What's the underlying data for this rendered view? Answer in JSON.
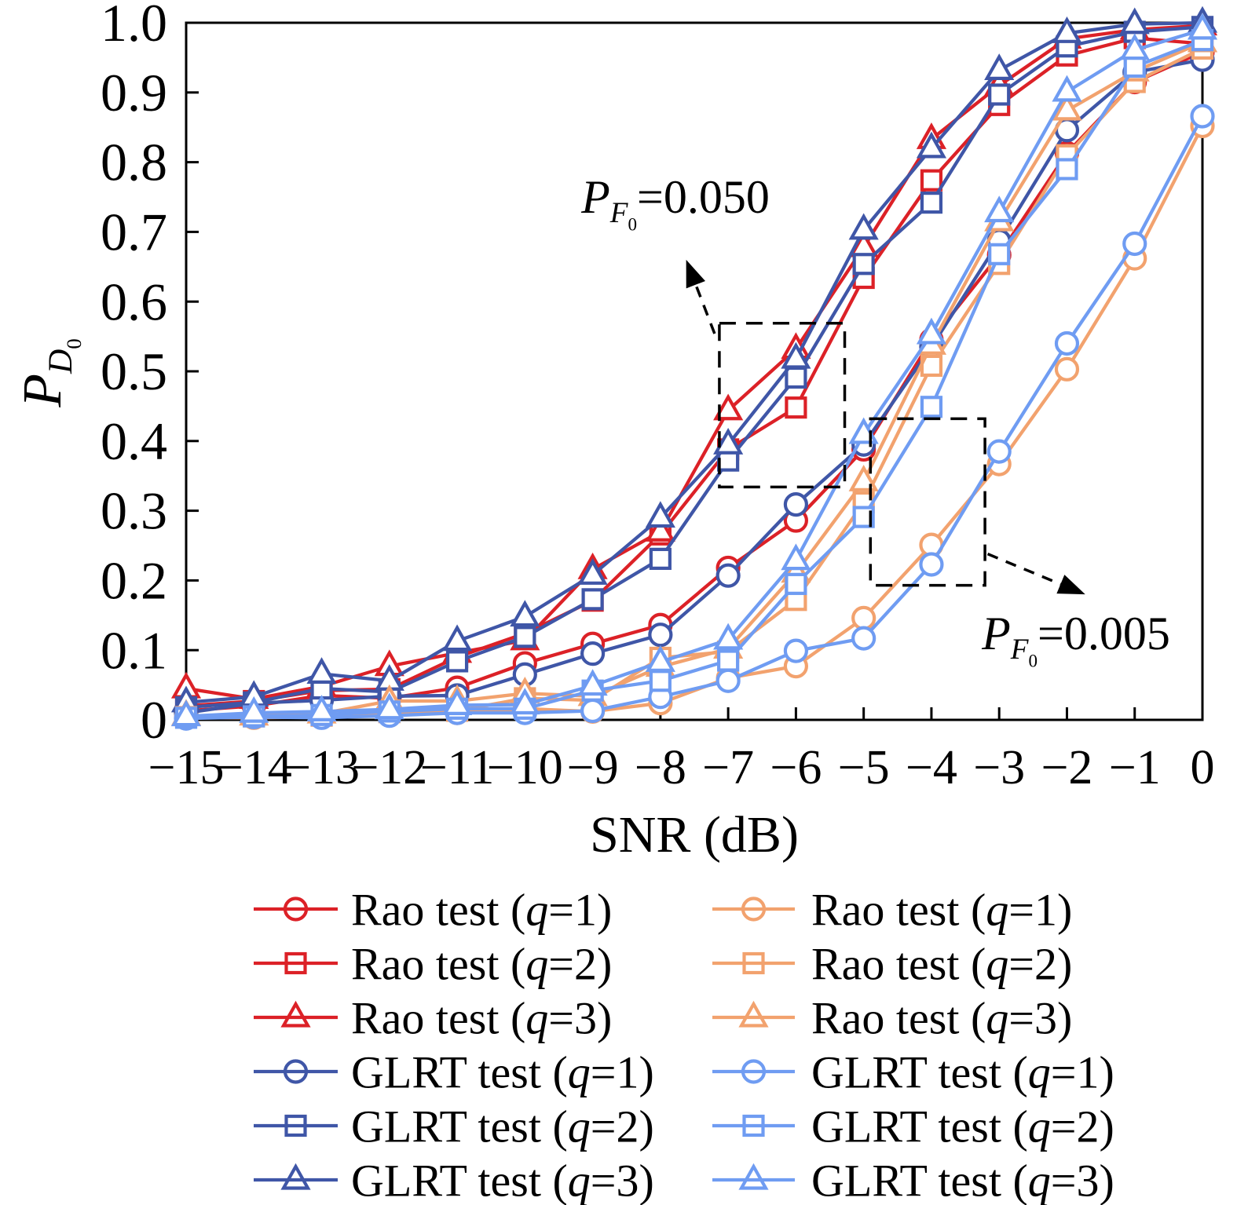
{
  "axes": {
    "x": {
      "label": "SNR (dB)",
      "range": [
        -15,
        0
      ],
      "tick_labels": [
        "−15",
        "−14",
        "−13",
        "−12",
        "−11",
        "−10",
        "−9",
        "−8",
        "−7",
        "−6",
        "−5",
        "−4",
        "−3",
        "−2",
        "−1",
        "0"
      ]
    },
    "y": {
      "label_parts": {
        "base": "P",
        "sub": "D",
        "subsub": "0"
      },
      "range": [
        0,
        1
      ],
      "tick_labels": [
        "0",
        "0.1",
        "0.2",
        "0.3",
        "0.4",
        "0.5",
        "0.6",
        "0.7",
        "0.8",
        "0.9",
        "1.0"
      ]
    }
  },
  "colors": {
    "rao_pfa050": "#dc2127",
    "glrt_pfa050": "#3f56a7",
    "rao_pfa005": "#f2a26e",
    "glrt_pfa005": "#6f9cf2",
    "axis": "#000000"
  },
  "chart_data": {
    "type": "line",
    "grid": false,
    "legend_position": "below axis, two columns",
    "x": [
      -15,
      -14,
      -13,
      -12,
      -11,
      -10,
      -9,
      -8,
      -7,
      -6,
      -5,
      -4,
      -3,
      -2,
      -1,
      0
    ],
    "series": [
      {
        "name": "rao-q1-pfa050",
        "legend_label": "Rao test (q=1)",
        "color": "rao_pfa050",
        "marker": "circle",
        "pfa": "0.050",
        "values": [
          0.013,
          0.02,
          0.035,
          0.031,
          0.046,
          0.081,
          0.109,
          0.136,
          0.218,
          0.286,
          0.388,
          0.545,
          0.667,
          0.813,
          0.915,
          0.958
        ]
      },
      {
        "name": "rao-q2-pfa050",
        "legend_label": "Rao test (q=2)",
        "color": "rao_pfa050",
        "marker": "square",
        "pfa": "0.050",
        "values": [
          0.02,
          0.027,
          0.042,
          0.044,
          0.09,
          0.124,
          0.171,
          0.266,
          0.388,
          0.448,
          0.634,
          0.774,
          0.882,
          0.953,
          0.978,
          0.97
        ]
      },
      {
        "name": "rao-q3-pfa050",
        "legend_label": "Rao test (q=3)",
        "color": "rao_pfa050",
        "marker": "triangle",
        "pfa": "0.050",
        "values": [
          0.045,
          0.03,
          0.048,
          0.077,
          0.096,
          0.114,
          0.216,
          0.27,
          0.444,
          0.532,
          0.678,
          0.833,
          0.91,
          0.977,
          0.99,
          0.996
        ]
      },
      {
        "name": "glrt-q1-pfa050",
        "legend_label": "GLRT test (q=1)",
        "color": "glrt_pfa050",
        "marker": "circle",
        "pfa": "0.050",
        "values": [
          0.01,
          0.024,
          0.028,
          0.034,
          0.035,
          0.065,
          0.095,
          0.122,
          0.207,
          0.309,
          0.395,
          0.535,
          0.687,
          0.846,
          0.929,
          0.947
        ]
      },
      {
        "name": "glrt-q2-pfa050",
        "legend_label": "GLRT test (q=2)",
        "color": "glrt_pfa050",
        "marker": "square",
        "pfa": "0.050",
        "values": [
          0.018,
          0.025,
          0.045,
          0.04,
          0.084,
          0.119,
          0.173,
          0.231,
          0.372,
          0.491,
          0.654,
          0.742,
          0.897,
          0.966,
          0.987,
          0.994
        ]
      },
      {
        "name": "glrt-q3-pfa050",
        "legend_label": "GLRT test (q=3)",
        "color": "glrt_pfa050",
        "marker": "triangle",
        "pfa": "0.050",
        "values": [
          0.025,
          0.033,
          0.066,
          0.056,
          0.113,
          0.148,
          0.208,
          0.29,
          0.395,
          0.518,
          0.703,
          0.82,
          0.932,
          0.985,
          0.998,
          1.0
        ]
      },
      {
        "name": "rao-q1-pfa005",
        "legend_label": "Rao test (q=1)",
        "color": "rao_pfa005",
        "marker": "circle",
        "pfa": "0.005",
        "values": [
          0.003,
          0.003,
          0.004,
          0.009,
          0.01,
          0.016,
          0.012,
          0.024,
          0.06,
          0.077,
          0.146,
          0.251,
          0.367,
          0.503,
          0.662,
          0.852
        ]
      },
      {
        "name": "rao-q2-pfa005",
        "legend_label": "Rao test (q=2)",
        "color": "rao_pfa005",
        "marker": "square",
        "pfa": "0.005",
        "values": [
          0.004,
          0.005,
          0.006,
          0.011,
          0.013,
          0.031,
          0.028,
          0.089,
          0.098,
          0.172,
          0.312,
          0.508,
          0.654,
          0.81,
          0.915,
          0.963
        ]
      },
      {
        "name": "rao-q3-pfa005",
        "legend_label": "Rao test (q=3)",
        "color": "rao_pfa005",
        "marker": "triangle",
        "pfa": "0.005",
        "values": [
          0.006,
          0.006,
          0.009,
          0.027,
          0.027,
          0.038,
          0.034,
          0.076,
          0.102,
          0.211,
          0.342,
          0.538,
          0.715,
          0.874,
          0.93,
          0.972
        ]
      },
      {
        "name": "glrt-q1-pfa005",
        "legend_label": "GLRT test (q=1)",
        "color": "glrt_pfa005",
        "marker": "circle",
        "pfa": "0.005",
        "values": [
          0.002,
          0.004,
          0.003,
          0.006,
          0.01,
          0.01,
          0.013,
          0.033,
          0.056,
          0.099,
          0.117,
          0.223,
          0.385,
          0.54,
          0.683,
          0.866
        ]
      },
      {
        "name": "glrt-q2-pfa005",
        "legend_label": "GLRT test (q=2)",
        "color": "glrt_pfa005",
        "marker": "square",
        "pfa": "0.005",
        "values": [
          0.003,
          0.005,
          0.007,
          0.012,
          0.016,
          0.016,
          0.042,
          0.056,
          0.085,
          0.195,
          0.291,
          0.449,
          0.668,
          0.79,
          0.937,
          0.975
        ]
      },
      {
        "name": "glrt-q3-pfa005",
        "legend_label": "GLRT test (q=3)",
        "color": "glrt_pfa005",
        "marker": "triangle",
        "pfa": "0.005",
        "values": [
          0.005,
          0.01,
          0.012,
          0.015,
          0.021,
          0.022,
          0.049,
          0.083,
          0.115,
          0.229,
          0.41,
          0.553,
          0.728,
          0.901,
          0.961,
          0.99
        ]
      }
    ]
  },
  "annotations": [
    {
      "name": "pfa-0.050",
      "base": "P",
      "sub": "F",
      "subsub": "0",
      "rest": "=0.050",
      "box": {
        "x": [
          -7.13,
          -5.28
        ],
        "y": [
          0.334,
          0.569
        ]
      },
      "arrow": {
        "from": [
          -7.2,
          0.554
        ],
        "to": [
          -7.62,
          0.66
        ]
      }
    },
    {
      "name": "pfa-0.005",
      "base": "P",
      "sub": "F",
      "subsub": "0",
      "rest": "=0.005",
      "box": {
        "x": [
          -4.9,
          -3.21
        ],
        "y": [
          0.193,
          0.432
        ]
      },
      "arrow": {
        "from": [
          -3.17,
          0.238
        ],
        "to": [
          -1.73,
          0.18
        ]
      }
    }
  ]
}
